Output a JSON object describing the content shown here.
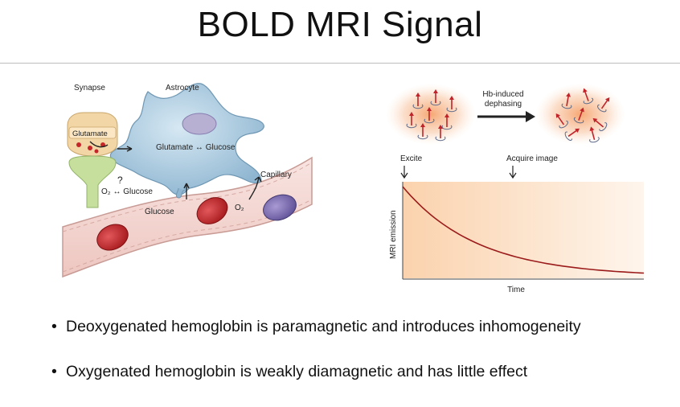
{
  "slide": {
    "title": "BOLD MRI Signal"
  },
  "left_figure": {
    "labels": {
      "synapse": "Synapse",
      "astrocyte": "Astrocyte",
      "glutamate_box": "Glutamate",
      "glutamate_glucose": "Glutamate ↔ Glucose",
      "o2_glucose": "O₂ ↔ Glucose",
      "question": "?",
      "capillary": "Capillary",
      "glucose": "Glucose",
      "o2": "O₂"
    },
    "colors": {
      "astrocyte": "#a9cbe0",
      "nucleus": "#b7b0d3",
      "vessel": "#f3d7d3",
      "rbc_red": "#c4262a",
      "rbc_purple": "#7b6bb0",
      "synapse_top": "#f2d6a5",
      "synapse_bottom": "#c6df9d"
    }
  },
  "right_figure": {
    "labels": {
      "hb_induced": "Hb-induced",
      "dephasing": "dephasing",
      "excite": "Excite",
      "acquire_image": "Acquire image",
      "y_axis": "MRI emission",
      "x_axis": "Time"
    },
    "colors": {
      "spin_glow": "#f7b486",
      "spin_arrow": "#c0242a",
      "curve": "#9b1b1b",
      "plot_bg": "#fbd9b9"
    },
    "curve_data": {
      "type": "line",
      "description_shape": "exponential decay",
      "x_range": [
        0,
        1
      ],
      "y_start": 1.0,
      "y_end": 0.04
    }
  },
  "bullets": [
    "Deoxygenated hemoglobin is paramagnetic and introduces inhomogeneity",
    "Oxygenated hemoglobin is weakly diamagnetic and has little effect"
  ]
}
